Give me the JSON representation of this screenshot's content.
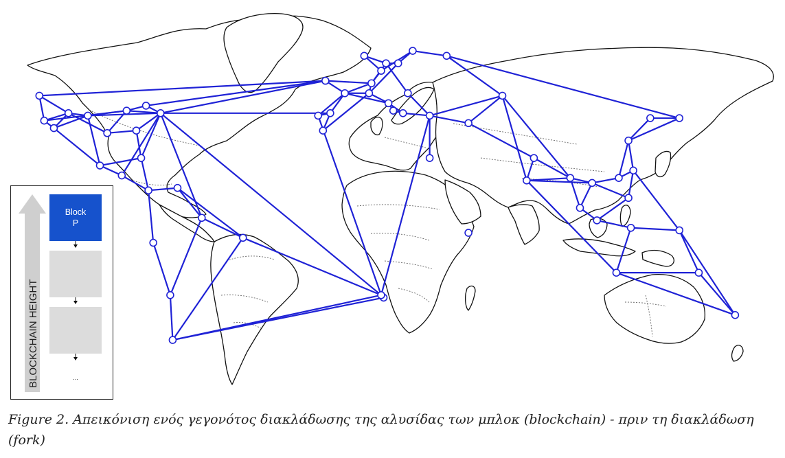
{
  "figure": {
    "caption": "Figure 2. Απεικόνιση ενός γεγονότος διακλάδωσης της αλυσίδας των μπλοκ (blockchain) - πριν τη διακλάδωση (fork)"
  },
  "chain_panel": {
    "axis_label": "BLOCKCHAIN HEIGHT",
    "head_block_label_line1": "Block",
    "head_block_label_line2": "P",
    "ellipsis": "...",
    "colors": {
      "head_block": "#1652cc",
      "empty_block": "#dcdcdc",
      "arrow": "#cfcfcf"
    }
  },
  "network": {
    "edge_color": "#1f22d6",
    "node_fill": "#ffffff",
    "nodes": [
      {
        "id": "n0",
        "lon": -124,
        "lat": 47
      },
      {
        "id": "n1",
        "lon": -122,
        "lat": 37
      },
      {
        "id": "n2",
        "lon": -118,
        "lat": 34
      },
      {
        "id": "n3",
        "lon": -112,
        "lat": 40
      },
      {
        "id": "n4",
        "lon": -104,
        "lat": 39
      },
      {
        "id": "n5",
        "lon": -96,
        "lat": 32
      },
      {
        "id": "n6",
        "lon": -88,
        "lat": 41
      },
      {
        "id": "n7",
        "lon": -84,
        "lat": 33
      },
      {
        "id": "n8",
        "lon": -80,
        "lat": 43
      },
      {
        "id": "n9",
        "lon": -74,
        "lat": 40
      },
      {
        "id": "n10",
        "lon": -99,
        "lat": 19
      },
      {
        "id": "n11",
        "lon": -82,
        "lat": 22
      },
      {
        "id": "n12",
        "lon": -90,
        "lat": 15
      },
      {
        "id": "n13",
        "lon": -79,
        "lat": 9
      },
      {
        "id": "n14",
        "lon": -67,
        "lat": 10
      },
      {
        "id": "n15",
        "lon": -57,
        "lat": -2
      },
      {
        "id": "n16",
        "lon": -40,
        "lat": -10
      },
      {
        "id": "n17",
        "lon": -77,
        "lat": -12
      },
      {
        "id": "n18",
        "lon": -70,
        "lat": -33
      },
      {
        "id": "n19",
        "lon": -69,
        "lat": -51
      },
      {
        "id": "n20",
        "lon": -6,
        "lat": 53
      },
      {
        "id": "n21",
        "lon": -4,
        "lat": 40
      },
      {
        "id": "n22",
        "lon": -9,
        "lat": 39
      },
      {
        "id": "n23",
        "lon": -7,
        "lat": 33
      },
      {
        "id": "n24",
        "lon": 2,
        "lat": 48
      },
      {
        "id": "n25",
        "lon": 13,
        "lat": 52
      },
      {
        "id": "n26",
        "lon": 12,
        "lat": 48
      },
      {
        "id": "n27",
        "lon": 20,
        "lat": 44
      },
      {
        "id": "n28",
        "lon": 24,
        "lat": 60
      },
      {
        "id": "n29",
        "lon": 10,
        "lat": 63
      },
      {
        "id": "n30",
        "lon": 30,
        "lat": 65
      },
      {
        "id": "n31",
        "lon": 19,
        "lat": 60
      },
      {
        "id": "n32",
        "lon": 17,
        "lat": 57
      },
      {
        "id": "n33",
        "lon": 28,
        "lat": 48
      },
      {
        "id": "n34",
        "lon": 22,
        "lat": 41
      },
      {
        "id": "n35",
        "lon": 26,
        "lat": 40
      },
      {
        "id": "n36",
        "lon": 37,
        "lat": 39
      },
      {
        "id": "n37",
        "lon": 44,
        "lat": 63
      },
      {
        "id": "n38",
        "lon": 53,
        "lat": 36
      },
      {
        "id": "n39",
        "lon": 37,
        "lat": 22
      },
      {
        "id": "n40",
        "lon": 67,
        "lat": 47
      },
      {
        "id": "n41",
        "lon": 53,
        "lat": -8
      },
      {
        "id": "n42",
        "lon": 18,
        "lat": -34
      },
      {
        "id": "n43",
        "lon": 17,
        "lat": -33
      },
      {
        "id": "n44",
        "lon": 80,
        "lat": 22
      },
      {
        "id": "n45",
        "lon": 77,
        "lat": 13
      },
      {
        "id": "n46",
        "lon": 95,
        "lat": 14
      },
      {
        "id": "n47",
        "lon": 99,
        "lat": 2
      },
      {
        "id": "n48",
        "lon": 104,
        "lat": 12
      },
      {
        "id": "n49",
        "lon": 115,
        "lat": 14
      },
      {
        "id": "n50",
        "lon": 121,
        "lat": 17
      },
      {
        "id": "n51",
        "lon": 119,
        "lat": 29
      },
      {
        "id": "n52",
        "lon": 128,
        "lat": 38
      },
      {
        "id": "n53",
        "lon": 140,
        "lat": 38
      },
      {
        "id": "n54",
        "lon": 106,
        "lat": -3
      },
      {
        "id": "n55",
        "lon": 120,
        "lat": -6
      },
      {
        "id": "n56",
        "lon": 140,
        "lat": -7
      },
      {
        "id": "n57",
        "lon": 114,
        "lat": -24
      },
      {
        "id": "n58",
        "lon": 148,
        "lat": -24
      },
      {
        "id": "n59",
        "lon": 163,
        "lat": -41
      },
      {
        "id": "n60",
        "lon": 119,
        "lat": 6
      }
    ],
    "edges": [
      [
        "n0",
        "n1"
      ],
      [
        "n0",
        "n3"
      ],
      [
        "n0",
        "n20"
      ],
      [
        "n1",
        "n2"
      ],
      [
        "n1",
        "n3"
      ],
      [
        "n1",
        "n6"
      ],
      [
        "n2",
        "n3"
      ],
      [
        "n2",
        "n4"
      ],
      [
        "n2",
        "n10"
      ],
      [
        "n3",
        "n4"
      ],
      [
        "n3",
        "n5"
      ],
      [
        "n4",
        "n6"
      ],
      [
        "n4",
        "n9"
      ],
      [
        "n4",
        "n10"
      ],
      [
        "n5",
        "n6"
      ],
      [
        "n5",
        "n7"
      ],
      [
        "n6",
        "n8"
      ],
      [
        "n6",
        "n9"
      ],
      [
        "n7",
        "n9"
      ],
      [
        "n7",
        "n11"
      ],
      [
        "n8",
        "n9"
      ],
      [
        "n8",
        "n20"
      ],
      [
        "n9",
        "n20"
      ],
      [
        "n9",
        "n21"
      ],
      [
        "n9",
        "n12"
      ],
      [
        "n9",
        "n43"
      ],
      [
        "n9",
        "n15"
      ],
      [
        "n9",
        "n11"
      ],
      [
        "n10",
        "n12"
      ],
      [
        "n10",
        "n11"
      ],
      [
        "n11",
        "n13"
      ],
      [
        "n12",
        "n13"
      ],
      [
        "n13",
        "n14"
      ],
      [
        "n13",
        "n17"
      ],
      [
        "n14",
        "n15"
      ],
      [
        "n14",
        "n16"
      ],
      [
        "n15",
        "n16"
      ],
      [
        "n15",
        "n18"
      ],
      [
        "n16",
        "n43"
      ],
      [
        "n16",
        "n19"
      ],
      [
        "n17",
        "n18"
      ],
      [
        "n18",
        "n19"
      ],
      [
        "n19",
        "n42"
      ],
      [
        "n19",
        "n43"
      ],
      [
        "n20",
        "n24"
      ],
      [
        "n20",
        "n25"
      ],
      [
        "n21",
        "n22"
      ],
      [
        "n21",
        "n24"
      ],
      [
        "n21",
        "n23"
      ],
      [
        "n22",
        "n24"
      ],
      [
        "n23",
        "n26"
      ],
      [
        "n24",
        "n25"
      ],
      [
        "n24",
        "n26"
      ],
      [
        "n24",
        "n27"
      ],
      [
        "n25",
        "n32"
      ],
      [
        "n25",
        "n31"
      ],
      [
        "n25",
        "n26"
      ],
      [
        "n26",
        "n27"
      ],
      [
        "n26",
        "n28"
      ],
      [
        "n27",
        "n34"
      ],
      [
        "n27",
        "n35"
      ],
      [
        "n28",
        "n31"
      ],
      [
        "n28",
        "n30"
      ],
      [
        "n29",
        "n32"
      ],
      [
        "n29",
        "n31"
      ],
      [
        "n30",
        "n32"
      ],
      [
        "n30",
        "n37"
      ],
      [
        "n31",
        "n33"
      ],
      [
        "n33",
        "n36"
      ],
      [
        "n34",
        "n35"
      ],
      [
        "n35",
        "n36"
      ],
      [
        "n36",
        "n38"
      ],
      [
        "n36",
        "n39"
      ],
      [
        "n36",
        "n40"
      ],
      [
        "n37",
        "n40"
      ],
      [
        "n37",
        "n53"
      ],
      [
        "n38",
        "n40"
      ],
      [
        "n38",
        "n44"
      ],
      [
        "n40",
        "n45"
      ],
      [
        "n40",
        "n46"
      ],
      [
        "n43",
        "n36"
      ],
      [
        "n22",
        "n43"
      ],
      [
        "n44",
        "n45"
      ],
      [
        "n44",
        "n46"
      ],
      [
        "n45",
        "n46"
      ],
      [
        "n45",
        "n48"
      ],
      [
        "n45",
        "n57"
      ],
      [
        "n46",
        "n47"
      ],
      [
        "n46",
        "n48"
      ],
      [
        "n47",
        "n48"
      ],
      [
        "n47",
        "n54"
      ],
      [
        "n48",
        "n49"
      ],
      [
        "n48",
        "n60"
      ],
      [
        "n49",
        "n50"
      ],
      [
        "n49",
        "n51"
      ],
      [
        "n50",
        "n51"
      ],
      [
        "n50",
        "n60"
      ],
      [
        "n50",
        "n56"
      ],
      [
        "n51",
        "n52"
      ],
      [
        "n51",
        "n53"
      ],
      [
        "n52",
        "n53"
      ],
      [
        "n54",
        "n55"
      ],
      [
        "n54",
        "n60"
      ],
      [
        "n55",
        "n56"
      ],
      [
        "n55",
        "n57"
      ],
      [
        "n56",
        "n58"
      ],
      [
        "n57",
        "n58"
      ],
      [
        "n57",
        "n59"
      ],
      [
        "n58",
        "n59"
      ],
      [
        "n56",
        "n59"
      ]
    ]
  }
}
